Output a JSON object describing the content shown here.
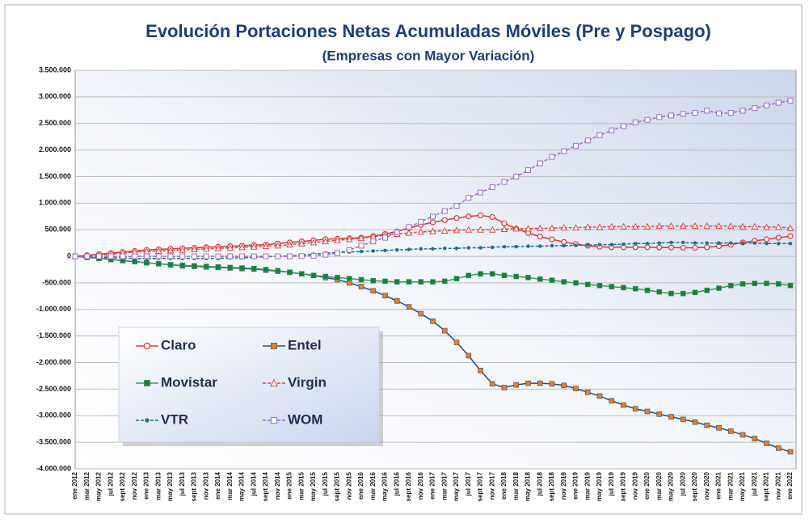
{
  "chart_data": {
    "type": "line",
    "title": "Evolución Portaciones Netas Acumuladas Móviles (Pre y Pospago)",
    "subtitle": "(Empresas con Mayor Variación)",
    "categories": [
      "ene 2012",
      "mar 2012",
      "may 2012",
      "jul 2012",
      "sept 2012",
      "nov 2012",
      "ene 2013",
      "mar 2013",
      "may 2013",
      "jul 2013",
      "sept 2013",
      "nov 2013",
      "ene 2014",
      "mar 2014",
      "may 2014",
      "jul 2014",
      "sept 2014",
      "nov 2014",
      "ene 2015",
      "mar 2015",
      "may 2015",
      "jul 2015",
      "sept 2015",
      "nov 2015",
      "ene 2016",
      "mar 2016",
      "may 2016",
      "jul 2016",
      "sept 2016",
      "nov 2016",
      "ene 2017",
      "mar 2017",
      "may 2017",
      "jul 2017",
      "sept 2017",
      "nov 2017",
      "ene 2018",
      "mar 2018",
      "may 2018",
      "jul 2018",
      "sept 2018",
      "nov 2018",
      "ene 2019",
      "mar 2019",
      "may 2019",
      "jul 2019",
      "sept 2019",
      "nov 2019",
      "ene 2020",
      "mar 2020",
      "may 2020",
      "jul 2020",
      "sept 2020",
      "nov 2020",
      "ene 2021",
      "mar 2021",
      "may 2021",
      "jul 2021",
      "sept 2021",
      "nov 2021",
      "ene 2022"
    ],
    "ylim": [
      -4000000,
      3500000
    ],
    "yticks": [
      {
        "value": -4000000,
        "label": "-4.000.000"
      },
      {
        "value": -3500000,
        "label": "-3.500.000"
      },
      {
        "value": -3000000,
        "label": "-3.000.000"
      },
      {
        "value": -2500000,
        "label": "-2.500.000"
      },
      {
        "value": -2000000,
        "label": "-2.000.000"
      },
      {
        "value": -1500000,
        "label": "-1.500.000"
      },
      {
        "value": -1000000,
        "label": "-1.000.000"
      },
      {
        "value": -500000,
        "label": "-500.000"
      },
      0,
      {
        "value": 500000,
        "label": "500.000"
      },
      {
        "value": 1000000,
        "label": "1.000.000"
      },
      {
        "value": 1500000,
        "label": "1.500.000"
      },
      {
        "value": 2000000,
        "label": "2.000.000"
      },
      {
        "value": 2500000,
        "label": "2.500.000"
      },
      {
        "value": 3000000,
        "label": "3.000.000"
      },
      {
        "value": 3500000,
        "label": "3.500.000"
      }
    ],
    "grid": true,
    "series": [
      {
        "name": "Claro",
        "color": "#e03535",
        "marker_color": "#e03535",
        "marker": "circle",
        "dashed": false,
        "values": [
          0,
          20000,
          40000,
          60000,
          80000,
          100000,
          120000,
          130000,
          140000,
          150000,
          160000,
          170000,
          180000,
          190000,
          200000,
          210000,
          220000,
          240000,
          260000,
          280000,
          300000,
          320000,
          330000,
          340000,
          350000,
          380000,
          420000,
          470000,
          530000,
          590000,
          640000,
          680000,
          720000,
          750000,
          770000,
          740000,
          620000,
          520000,
          440000,
          370000,
          320000,
          270000,
          230000,
          200000,
          180000,
          170000,
          170000,
          170000,
          170000,
          165000,
          165000,
          160000,
          160000,
          170000,
          190000,
          220000,
          260000,
          290000,
          320000,
          350000,
          380000
        ]
      },
      {
        "name": "Entel",
        "color": "#2f4a7a",
        "marker_color": "#e8801e",
        "marker": "square",
        "dashed": false,
        "values": [
          0,
          -20000,
          -40000,
          -60000,
          -80000,
          -100000,
          -120000,
          -140000,
          -160000,
          -180000,
          -190000,
          -200000,
          -210000,
          -220000,
          -230000,
          -240000,
          -260000,
          -280000,
          -300000,
          -330000,
          -360000,
          -400000,
          -440000,
          -500000,
          -570000,
          -650000,
          -740000,
          -840000,
          -950000,
          -1080000,
          -1220000,
          -1400000,
          -1620000,
          -1870000,
          -2150000,
          -2400000,
          -2470000,
          -2420000,
          -2390000,
          -2390000,
          -2400000,
          -2430000,
          -2490000,
          -2560000,
          -2630000,
          -2720000,
          -2800000,
          -2870000,
          -2920000,
          -2970000,
          -3020000,
          -3070000,
          -3120000,
          -3180000,
          -3230000,
          -3290000,
          -3360000,
          -3430000,
          -3520000,
          -3610000,
          -3680000
        ]
      },
      {
        "name": "Movistar",
        "color": "#3a9a5a",
        "marker_color": "#16803a",
        "marker": "square",
        "dashed": false,
        "values": [
          0,
          -20000,
          -40000,
          -60000,
          -80000,
          -100000,
          -120000,
          -140000,
          -160000,
          -170000,
          -180000,
          -190000,
          -200000,
          -210000,
          -220000,
          -230000,
          -250000,
          -270000,
          -300000,
          -330000,
          -360000,
          -380000,
          -400000,
          -420000,
          -440000,
          -460000,
          -470000,
          -480000,
          -480000,
          -480000,
          -480000,
          -470000,
          -420000,
          -360000,
          -330000,
          -330000,
          -360000,
          -380000,
          -400000,
          -430000,
          -450000,
          -480000,
          -500000,
          -530000,
          -550000,
          -570000,
          -590000,
          -610000,
          -640000,
          -670000,
          -700000,
          -700000,
          -680000,
          -640000,
          -600000,
          -550000,
          -520000,
          -510000,
          -510000,
          -520000,
          -550000
        ]
      },
      {
        "name": "Virgin",
        "color": "#e04545",
        "marker_color": "#e04545",
        "marker": "triangle",
        "dashed": true,
        "values": [
          0,
          10000,
          20000,
          40000,
          60000,
          80000,
          90000,
          100000,
          110000,
          120000,
          130000,
          140000,
          150000,
          160000,
          170000,
          180000,
          190000,
          200000,
          220000,
          240000,
          260000,
          280000,
          300000,
          320000,
          340000,
          370000,
          400000,
          420000,
          440000,
          460000,
          470000,
          480000,
          490000,
          500000,
          500000,
          500000,
          510000,
          520000,
          520000,
          530000,
          530000,
          540000,
          540000,
          550000,
          550000,
          560000,
          560000,
          560000,
          560000,
          570000,
          570000,
          570000,
          570000,
          570000,
          570000,
          570000,
          560000,
          560000,
          550000,
          550000,
          530000
        ]
      },
      {
        "name": "VTR",
        "color": "#1f6f90",
        "marker_color": "#1f6f90",
        "marker": "dot",
        "dashed": true,
        "values": [
          0,
          -10000,
          -20000,
          -30000,
          -30000,
          -40000,
          -40000,
          -40000,
          -40000,
          -40000,
          -40000,
          -40000,
          -40000,
          -30000,
          -30000,
          -20000,
          -10000,
          0,
          10000,
          20000,
          40000,
          60000,
          70000,
          80000,
          90000,
          100000,
          110000,
          120000,
          130000,
          140000,
          140000,
          150000,
          150000,
          160000,
          160000,
          170000,
          180000,
          180000,
          190000,
          190000,
          200000,
          200000,
          210000,
          210000,
          220000,
          220000,
          230000,
          240000,
          240000,
          250000,
          260000,
          260000,
          250000,
          250000,
          250000,
          250000,
          250000,
          250000,
          240000,
          240000,
          240000
        ]
      },
      {
        "name": "WOM",
        "color": "#9a6cc4",
        "marker_color": "#9a6cc4",
        "marker": "square-open",
        "dashed": true,
        "values": [
          0,
          0,
          0,
          0,
          0,
          0,
          0,
          0,
          0,
          0,
          0,
          0,
          0,
          0,
          0,
          0,
          0,
          0,
          0,
          5000,
          10000,
          30000,
          60000,
          120000,
          200000,
          280000,
          350000,
          450000,
          550000,
          650000,
          750000,
          850000,
          950000,
          1100000,
          1200000,
          1300000,
          1400000,
          1500000,
          1620000,
          1750000,
          1870000,
          1980000,
          2080000,
          2180000,
          2280000,
          2370000,
          2450000,
          2520000,
          2570000,
          2620000,
          2650000,
          2680000,
          2700000,
          2740000,
          2690000,
          2700000,
          2740000,
          2790000,
          2840000,
          2890000,
          2930000
        ]
      }
    ]
  }
}
